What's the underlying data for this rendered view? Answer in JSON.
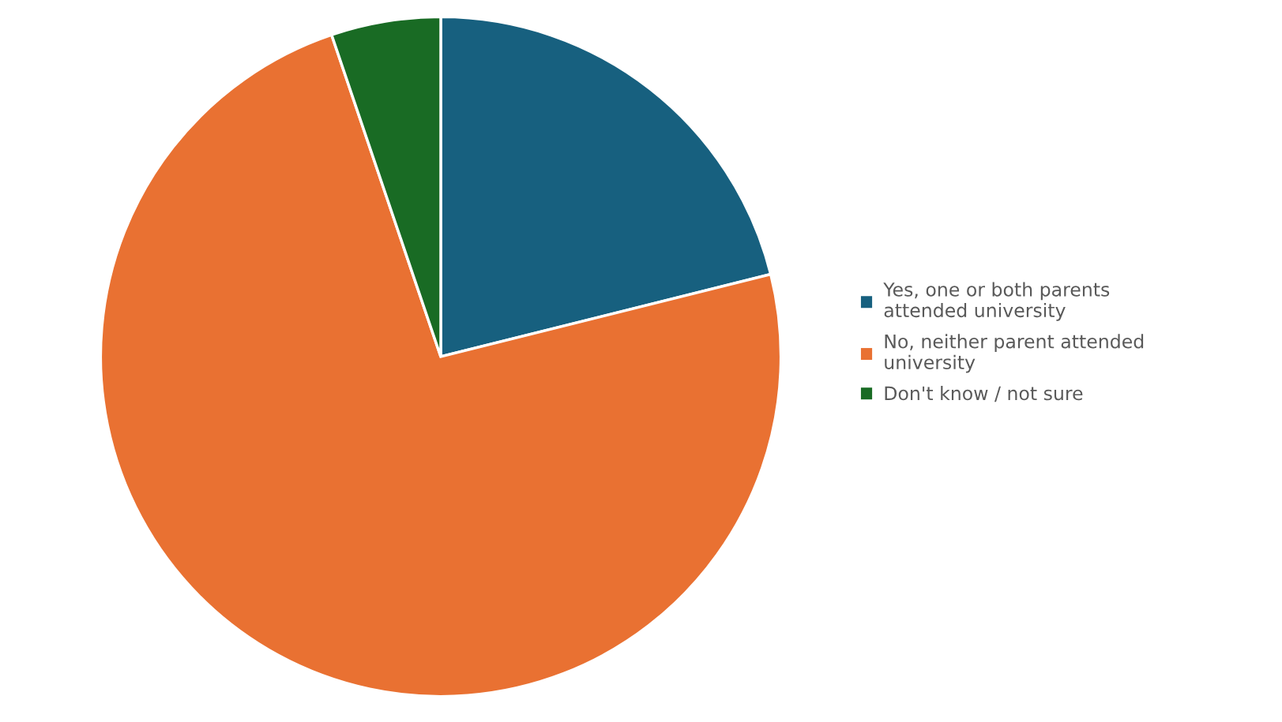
{
  "chart_data": {
    "type": "pie",
    "categories": [
      "Yes, one or both parents\nattended university",
      "No, neither parent attended\nuniversity",
      "Don't know / not sure"
    ],
    "values": [
      21.1,
      73.7,
      5.2
    ],
    "colors": [
      "#17607f",
      "#e97132",
      "#196b24"
    ],
    "legend": "right"
  }
}
